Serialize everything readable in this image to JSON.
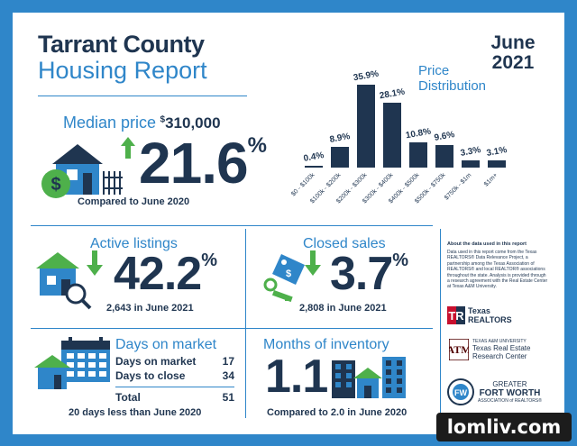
{
  "title": {
    "line1": "Tarrant County",
    "line2": "Housing Report"
  },
  "date": {
    "month": "June",
    "year": "2021"
  },
  "median": {
    "label": "Median price",
    "price_dollar": "$",
    "price": "310,000",
    "change": "21.6",
    "percent": "%",
    "caption": "Compared to June 2020"
  },
  "distribution": {
    "title_line1": "Price",
    "title_line2": "Distribution",
    "chart_data": {
      "type": "bar",
      "categories": [
        "$0 - $100k",
        "$100k - $200k",
        "$200k - $300k",
        "$300k - $400k",
        "$400k - $500k",
        "$500k - $750k",
        "$750k - $1m",
        "$1m+"
      ],
      "values": [
        0.4,
        8.9,
        35.9,
        28.1,
        10.8,
        9.6,
        3.3,
        3.1
      ],
      "value_labels": [
        "0.4%",
        "8.9%",
        "35.9%",
        "28.1%",
        "10.8%",
        "9.6%",
        "3.3%",
        "3.1%"
      ],
      "title": "Price Distribution"
    }
  },
  "active": {
    "label": "Active listings",
    "value": "42.2",
    "percent": "%",
    "caption": "2,643 in June 2021"
  },
  "closed": {
    "label": "Closed sales",
    "value": "3.7",
    "percent": "%",
    "caption": "2,808 in June 2021"
  },
  "days": {
    "label": "Days on market",
    "rows": [
      {
        "label": "Days on market",
        "value": "17"
      },
      {
        "label": "Days to close",
        "value": "34"
      },
      {
        "label": "Total",
        "value": "51"
      }
    ],
    "caption": "20 days less than June 2020"
  },
  "inventory": {
    "label": "Months of inventory",
    "value": "1.1",
    "caption": "Compared to 2.0 in June 2020"
  },
  "about": {
    "heading": "About the data used in this report",
    "body": "Data used in this report come from the Texas REALTORS® Data Relevance Project, a partnership among the Texas Association of REALTORS® and local REALTOR® associations throughout the state. Analysis is provided through a research agreement with the Real Estate Center at Texas A&M University."
  },
  "logos": {
    "texas_realtors": "Texas REALTORS",
    "tamu_small": "TEXAS A&M UNIVERSITY",
    "tamu_line1": "Texas Real Estate",
    "tamu_line2": "Research Center",
    "gfw_line1": "GREATER",
    "gfw_line2": "FORT WORTH",
    "gfw_line3": "ASSOCIATION of REALTORS®"
  },
  "watermark": "lomliv.com",
  "colors": {
    "navy": "#1f3550",
    "blue": "#2f86c9",
    "green": "#4eb04b"
  }
}
